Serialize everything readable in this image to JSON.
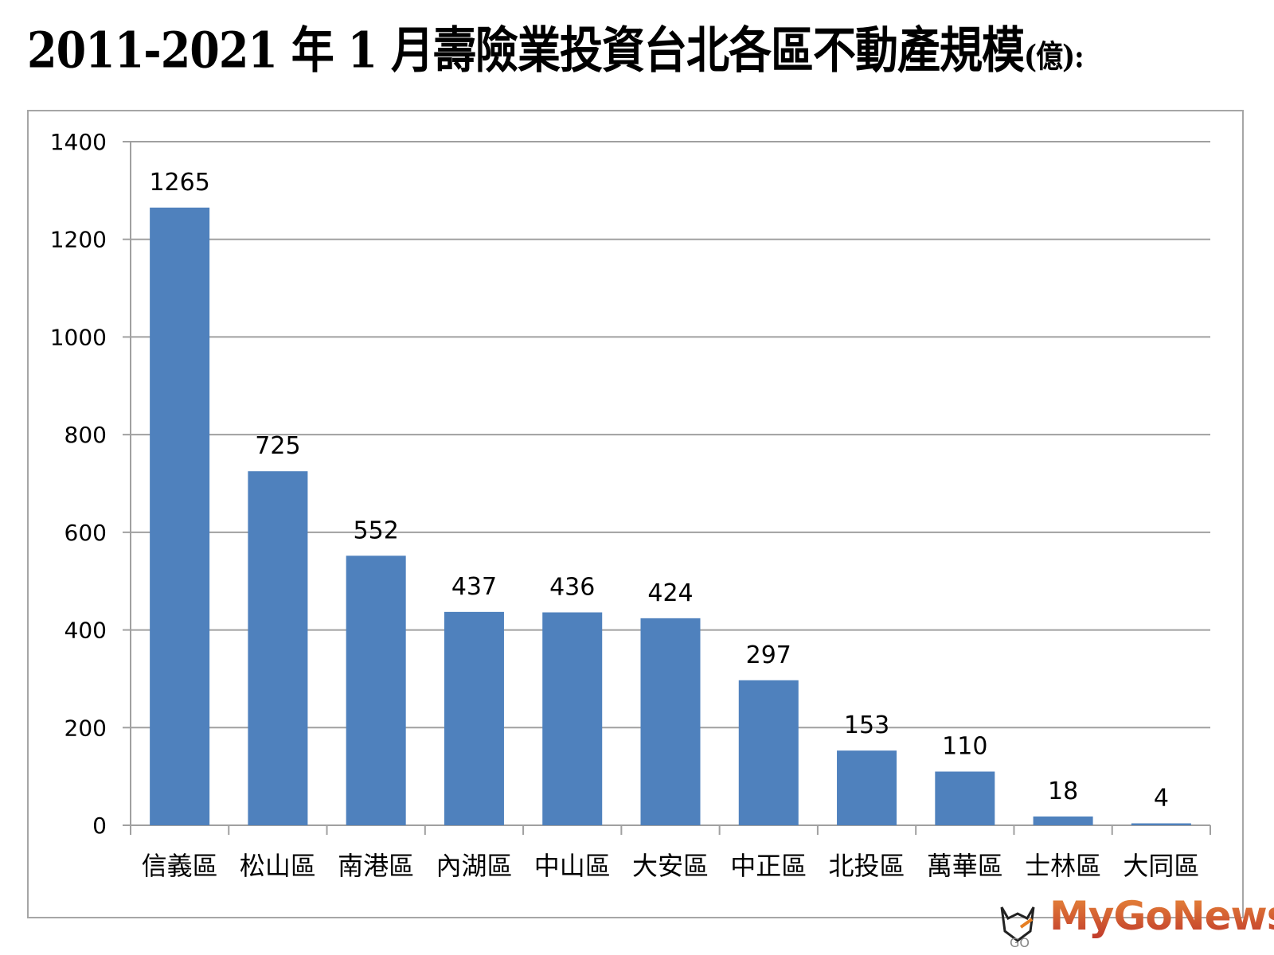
{
  "title": {
    "main": "2011-2021 年 1 月壽險業投資台北各區不動產規模",
    "unit": "(億):"
  },
  "chart_data": {
    "type": "bar",
    "title": "2011-2021 年 1 月壽險業投資台北各區不動產規模(億):",
    "categories": [
      "信義區",
      "松山區",
      "南港區",
      "內湖區",
      "中山區",
      "大安區",
      "中正區",
      "北投區",
      "萬華區",
      "士林區",
      "大同區"
    ],
    "values": [
      1265,
      725,
      552,
      437,
      436,
      424,
      297,
      153,
      110,
      18,
      4
    ],
    "ylim": [
      0,
      1400
    ],
    "yticks": [
      0,
      200,
      400,
      600,
      800,
      1000,
      1200,
      1400
    ],
    "grid": true,
    "xlabel": "",
    "ylabel": "",
    "bar_color": "#4f81bd"
  },
  "watermark": {
    "text": "MyGoNews",
    "sub": "GO"
  }
}
